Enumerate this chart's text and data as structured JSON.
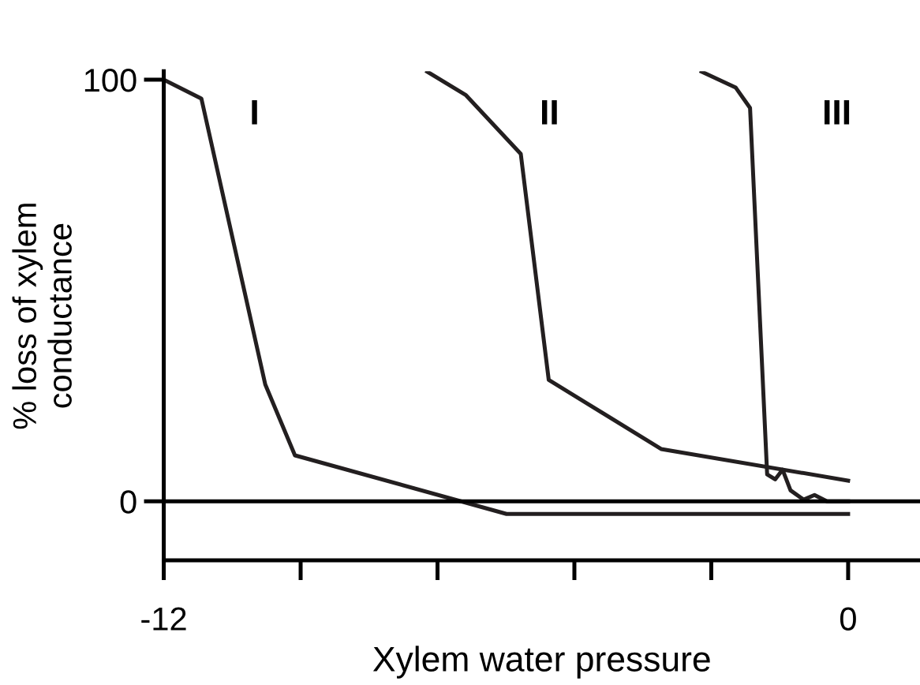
{
  "chart_data": {
    "type": "line",
    "xlabel": "Xylem water pressure",
    "ylabel": "% loss of xylem\nconductance",
    "xlim": [
      -12,
      1.26
    ],
    "ylim": [
      -14,
      102
    ],
    "xticks": [
      -12,
      {
        "value": -9.6,
        "label": null
      },
      {
        "value": -7.2,
        "label": null
      },
      {
        "value": -4.8,
        "label": null
      },
      {
        "value": -2.4,
        "label": null
      },
      0
    ],
    "yticks": [
      0,
      100
    ],
    "ref_lines": [
      {
        "axis": "y",
        "value": 0,
        "color": "#000000"
      }
    ],
    "series": [
      {
        "color": "#231f20",
        "x": [
          -12,
          -11.34,
          -10.22,
          -9.7,
          -5.99,
          0
        ],
        "values": [
          100,
          95.5,
          27.7,
          10.9,
          -3,
          -3
        ]
      },
      {
        "color": "#231f20",
        "x": [
          -7.38,
          -6.7,
          -5.74,
          -5.25,
          -3.28,
          0
        ],
        "values": [
          101.9,
          96.3,
          82.4,
          28.8,
          12.4,
          4.9
        ]
      },
      {
        "color": "#231f20",
        "x": [
          -2.57,
          -1.97,
          -1.72,
          -1.42,
          -1.28,
          -1.15,
          -1.01,
          -0.78,
          -0.59,
          -0.37,
          0
        ],
        "values": [
          101.9,
          98.1,
          93.3,
          6.4,
          5.2,
          7.5,
          2.6,
          0.4,
          1.5,
          0,
          0
        ]
      }
    ],
    "annotations": [
      "I",
      "II",
      "III"
    ],
    "grid": false,
    "legend": false,
    "marker": "none",
    "line_style": "solid"
  }
}
